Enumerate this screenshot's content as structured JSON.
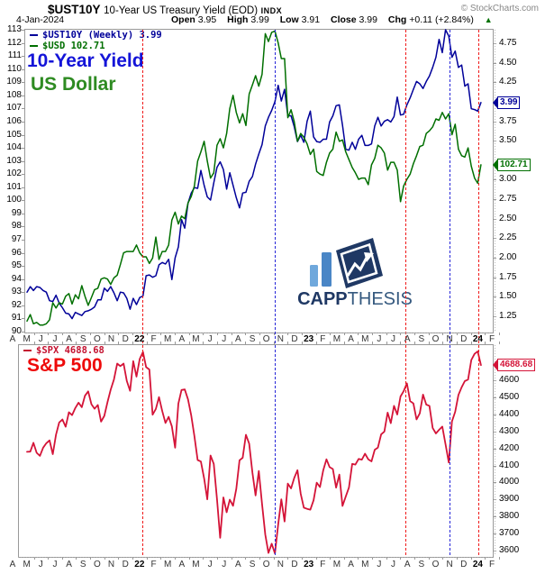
{
  "header": {
    "symbol": "$UST10Y",
    "title": "10-Year US Treasury Yield (EOD)",
    "exchange": "INDX",
    "copyright": "© StockCharts.com",
    "date": "4-Jan-2024",
    "quote": {
      "open_label": "Open",
      "open": "3.95",
      "high_label": "High",
      "high": "3.99",
      "low_label": "Low",
      "low": "3.91",
      "close_label": "Close",
      "close": "3.99",
      "chg_label": "Chg",
      "chg": "+0.11 (+2.84%)",
      "direction": "up"
    }
  },
  "icons": {
    "up_triangle": "▲"
  },
  "top_panel": {
    "legend": [
      {
        "label": "$UST10Y (Weekly) 3.99",
        "color": "#000099"
      },
      {
        "label": "$USD 102.71",
        "color": "#006F00"
      }
    ],
    "annotations": [
      {
        "text": "10-Year Yield",
        "color": "#1414D8"
      },
      {
        "text": "US Dollar",
        "color": "#2E8B22"
      }
    ],
    "left_axis_ticks": [
      113,
      112,
      111,
      110,
      109,
      108,
      107,
      106,
      105,
      104,
      103,
      102,
      101,
      100,
      99,
      98,
      97,
      96,
      95,
      94,
      93,
      92,
      91,
      90
    ],
    "right_axis_ticks": [
      4.75,
      4.5,
      4.25,
      3.75,
      3.5,
      3.0,
      2.75,
      2.5,
      2.25,
      2.0,
      1.75,
      1.5,
      1.25
    ],
    "price_tags": [
      {
        "text": "3.99",
        "value": 3.99,
        "scale": "yield",
        "color": "#000099"
      },
      {
        "text": "102.71",
        "value": 102.71,
        "scale": "usd",
        "color": "#006F00"
      }
    ]
  },
  "bottom_panel": {
    "legend": [
      {
        "label": "$SPX 4688.68",
        "color": "#C41230"
      }
    ],
    "annotations": [
      {
        "text": "S&P 500",
        "color": "#EE0A0A"
      }
    ],
    "right_axis_ticks": [
      4600,
      4500,
      4400,
      4300,
      4200,
      4100,
      4000,
      3900,
      3800,
      3700,
      3600
    ],
    "price_tags": [
      {
        "text": "4688.68",
        "value": 4688.68,
        "scale": "spx",
        "color": "#D41438"
      }
    ]
  },
  "xaxis": {
    "labels": [
      "A",
      "M",
      "J",
      "J",
      "A",
      "S",
      "O",
      "N",
      "D",
      "22",
      "F",
      "M",
      "A",
      "M",
      "J",
      "J",
      "A",
      "S",
      "O",
      "N",
      "D",
      "23",
      "F",
      "M",
      "A",
      "M",
      "J",
      "J",
      "A",
      "S",
      "O",
      "N",
      "D",
      "24",
      "F"
    ]
  },
  "vlines": [
    {
      "x": 158,
      "color": "#F01818",
      "style": "dashed"
    },
    {
      "x": 305,
      "color": "#2626D8",
      "style": "dashed"
    },
    {
      "x": 450,
      "color": "#F01818",
      "style": "dashed"
    },
    {
      "x": 499,
      "color": "#2626D8",
      "style": "dashed"
    },
    {
      "x": 531,
      "color": "#F01818",
      "style": "dashed"
    }
  ],
  "logo": {
    "word_bold": "CAPP",
    "word_light": "THESIS",
    "navy": "#1F3864",
    "light_blue": "#6FA8DC",
    "mid_blue": "#4A86C6",
    "text_light": "#35597F"
  },
  "chart_data": [
    {
      "type": "line",
      "panel": "top",
      "title": "10-Year Yield vs US Dollar",
      "x_unit": "weekly",
      "x_tick_labels": [
        "A",
        "M",
        "J",
        "J",
        "A",
        "S",
        "O",
        "N",
        "D",
        "22",
        "F",
        "M",
        "A",
        "M",
        "J",
        "J",
        "A",
        "S",
        "O",
        "N",
        "D",
        "23",
        "F",
        "M",
        "A",
        "M",
        "J",
        "J",
        "A",
        "S",
        "O",
        "N",
        "D",
        "24",
        "F"
      ],
      "right_ylim": [
        1.05,
        4.92
      ],
      "left_ylim": [
        90,
        113
      ],
      "grid": false,
      "series": [
        {
          "name": "$UST10Y (Weekly)",
          "axis": "right",
          "last": 3.99,
          "color": "#000099",
          "values": [
            1.56,
            1.63,
            1.58,
            1.63,
            1.62,
            1.58,
            1.56,
            1.45,
            1.44,
            1.52,
            1.42,
            1.36,
            1.29,
            1.28,
            1.22,
            1.3,
            1.28,
            1.26,
            1.31,
            1.32,
            1.34,
            1.37,
            1.46,
            1.46,
            1.61,
            1.57,
            1.63,
            1.55,
            1.45,
            1.56,
            1.55,
            1.48,
            1.34,
            1.48,
            1.4,
            1.49,
            1.51,
            1.77,
            1.78,
            1.75,
            1.77,
            1.91,
            1.94,
            1.92,
            1.98,
            1.72,
            2.0,
            2.14,
            2.49,
            2.38,
            2.7,
            2.83,
            2.9,
            2.89,
            3.12,
            2.93,
            2.78,
            2.74,
            2.96,
            3.16,
            3.23,
            3.13,
            2.88,
            3.09,
            2.93,
            2.77,
            2.64,
            2.83,
            2.84,
            2.98,
            3.04,
            3.2,
            3.33,
            3.45,
            3.69,
            3.8,
            3.89,
            4.0,
            4.21,
            4.01,
            4.16,
            3.82,
            3.82,
            3.68,
            3.49,
            3.57,
            3.48,
            3.75,
            3.88,
            3.55,
            3.49,
            3.48,
            3.52,
            3.52,
            3.74,
            3.82,
            3.95,
            3.96,
            3.7,
            3.39,
            3.38,
            3.48,
            3.39,
            3.52,
            3.57,
            3.44,
            3.44,
            3.46,
            3.69,
            3.8,
            3.69,
            3.75,
            3.77,
            3.74,
            3.81,
            4.06,
            3.83,
            3.84,
            3.96,
            4.05,
            4.16,
            4.26,
            4.23,
            4.17,
            4.26,
            4.33,
            4.44,
            4.57,
            4.8,
            4.63,
            4.93,
            4.84,
            4.57,
            4.65,
            4.44,
            4.47,
            4.2,
            4.23,
            3.91,
            3.9,
            3.88,
            3.99
          ]
        },
        {
          "name": "$USD",
          "axis": "left",
          "last": 102.71,
          "color": "#006F00",
          "values": [
            90.8,
            91.3,
            90.6,
            90.7,
            90.5,
            90.5,
            90.6,
            90.9,
            92.2,
            91.8,
            92.2,
            92.1,
            92.7,
            92.9,
            92.1,
            92.8,
            92.5,
            93.5,
            92.7,
            92.0,
            92.6,
            93.2,
            93.3,
            94.0,
            94.1,
            94.0,
            93.6,
            94.1,
            94.3,
            95.1,
            96.0,
            96.1,
            96.1,
            96.1,
            96.6,
            96.0,
            95.7,
            95.7,
            95.2,
            95.6,
            97.2,
            95.5,
            96.1,
            96.1,
            96.6,
            98.5,
            99.1,
            98.2,
            98.8,
            98.6,
            99.8,
            100.3,
            101.1,
            103.0,
            103.7,
            104.5,
            103.0,
            101.7,
            102.1,
            104.2,
            104.7,
            104.0,
            105.1,
            107.0,
            108.0,
            106.7,
            105.9,
            106.6,
            105.7,
            108.1,
            108.8,
            109.5,
            108.7,
            109.6,
            112.7,
            112.1,
            112.8,
            112.9,
            112.0,
            110.8,
            110.8,
            106.3,
            106.9,
            106.0,
            104.5,
            105.1,
            104.8,
            104.3,
            103.5,
            103.9,
            102.2,
            102.0,
            101.9,
            102.9,
            103.6,
            103.9,
            105.2,
            104.5,
            104.6,
            103.7,
            103.1,
            102.5,
            102.1,
            101.6,
            101.7,
            101.7,
            101.2,
            102.7,
            103.2,
            104.2,
            104.0,
            103.6,
            102.3,
            102.9,
            102.9,
            102.3,
            99.9,
            101.1,
            101.6,
            102.0,
            102.8,
            103.4,
            104.1,
            104.2,
            105.1,
            105.3,
            105.6,
            106.2,
            106.1,
            106.7,
            106.2,
            106.6,
            105.0,
            105.8,
            103.9,
            103.4,
            103.3,
            104.0,
            102.6,
            101.7,
            101.3,
            102.71
          ]
        }
      ]
    },
    {
      "type": "line",
      "panel": "bottom",
      "title": "S&P 500",
      "x_unit": "weekly",
      "ylim": [
        3575,
        4810
      ],
      "grid": false,
      "series": [
        {
          "name": "$SPX",
          "last": 4688.68,
          "color": "#D41438",
          "values": [
            4180,
            4181,
            4233,
            4174,
            4156,
            4204,
            4230,
            4247,
            4166,
            4281,
            4352,
            4370,
            4327,
            4412,
            4395,
            4437,
            4468,
            4442,
            4509,
            4535,
            4459,
            4433,
            4455,
            4357,
            4391,
            4471,
            4545,
            4605,
            4698,
            4683,
            4698,
            4595,
            4538,
            4712,
            4621,
            4725,
            4766,
            4677,
            4663,
            4398,
            4432,
            4501,
            4419,
            4349,
            4385,
            4329,
            4204,
            4463,
            4543,
            4546,
            4488,
            4393,
            4272,
            4132,
            4123,
            4024,
            3901,
            4158,
            4109,
            3901,
            3675,
            3912,
            3825,
            3899,
            3863,
            3962,
            4130,
            4145,
            4280,
            4228,
            4058,
            3924,
            4067,
            3873,
            3693,
            3586,
            3640,
            3583,
            3753,
            3901,
            3771,
            3993,
            3965,
            4026,
            4072,
            3934,
            3852,
            3845,
            3840,
            3895,
            3999,
            3973,
            4071,
            4136,
            4090,
            4079,
            3970,
            4046,
            3862,
            3917,
            3971,
            4109,
            4105,
            4138,
            4134,
            4169,
            4136,
            4124,
            4192,
            4205,
            4282,
            4299,
            4410,
            4348,
            4450,
            4399,
            4505,
            4536,
            4582,
            4478,
            4464,
            4370,
            4406,
            4516,
            4457,
            4450,
            4320,
            4288,
            4309,
            4328,
            4224,
            4117,
            4358,
            4415,
            4514,
            4559,
            4595,
            4604,
            4719,
            4755,
            4770,
            4688.68
          ]
        }
      ]
    }
  ]
}
